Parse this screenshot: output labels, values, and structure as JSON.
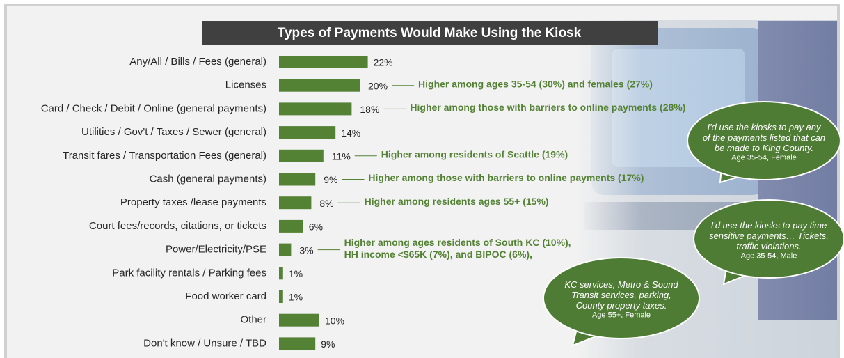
{
  "chart_data": {
    "type": "bar",
    "orientation": "horizontal",
    "title": "Types of Payments Would Make Using the Kiosk",
    "categories": [
      "Any/All / Bills  / Fees (general)",
      "Licenses",
      "Card / Check / Debit / Online (general payments)",
      "Utilities / Gov't / Taxes / Sewer (general)",
      "Transit fares / Transportation Fees (general)",
      "Cash (general payments)",
      "Property taxes /lease payments",
      "Court fees/records, citations, or tickets",
      "Power/Electricity/PSE",
      "Park facility rentals / Parking fees",
      "Food worker card",
      "Other",
      "Don't know / Unsure / TBD"
    ],
    "values": [
      22,
      20,
      18,
      14,
      11,
      9,
      8,
      6,
      3,
      1,
      1,
      10,
      9
    ],
    "value_labels": [
      "22%",
      "20%",
      "18%",
      "14%",
      "11%",
      "9%",
      "8%",
      "6%",
      "3%",
      "1%",
      "1%",
      "10%",
      "9%"
    ],
    "color": "#548235",
    "annotations": [
      null,
      [
        "Higher among ages 35-54 (30%) and females (27%)"
      ],
      [
        "Higher among those with barriers to online payments (28%)"
      ],
      null,
      [
        "Higher among residents of Seattle (19%)"
      ],
      [
        "Higher among those with barriers to online payments (17%)"
      ],
      [
        "Higher among residents ages 55+ (15%)"
      ],
      null,
      [
        "Higher among ages residents of South KC (10%),",
        "HH income <$65K (7%), and BIPOC (6%),"
      ],
      null,
      null,
      null,
      null
    ],
    "quotes": [
      {
        "text": [
          "I'd use the kiosks to pay any",
          "of the payments listed that can",
          "be made to King County."
        ],
        "attribution": "Age 35-54, Female"
      },
      {
        "text": [
          "I'd use the kiosks to pay time",
          "sensitive payments… Tickets,",
          "traffic violations."
        ],
        "attribution": "Age 35-54, Male"
      },
      {
        "text": [
          "KC services, Metro & Sound",
          "Transit services, parking,",
          "County property taxes."
        ],
        "attribution": "Age 55+, Female"
      }
    ]
  }
}
